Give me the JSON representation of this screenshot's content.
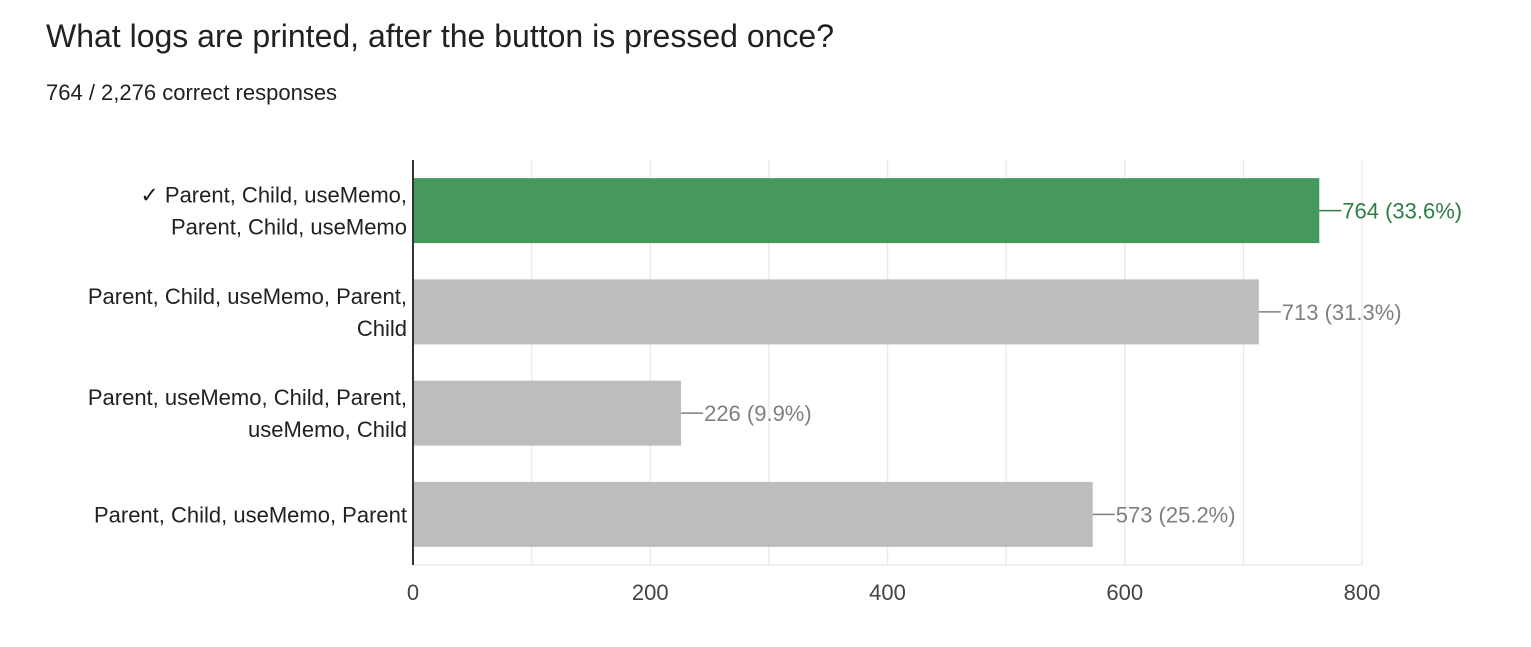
{
  "header": {
    "title": "What logs are printed, after the button is pressed once?",
    "subtitle": "764 / 2,276 correct responses"
  },
  "colors": {
    "correct": "#46995D",
    "other": "#BDBDBD",
    "correct_label": "#2E7D46",
    "other_label": "#7F7F7F",
    "grid": "#EBEBEB",
    "axis": "#333333"
  },
  "chart_data": {
    "type": "bar",
    "orientation": "horizontal",
    "categories": [
      [
        "✓ Parent, Child, useMemo,",
        "Parent, Child, useMemo"
      ],
      [
        "Parent, Child, useMemo, Parent,",
        "Child"
      ],
      [
        "Parent, useMemo, Child, Parent,",
        "useMemo, Child"
      ],
      [
        "Parent, Child, useMemo, Parent"
      ]
    ],
    "values": [
      764,
      713,
      226,
      573
    ],
    "labels": [
      "764 (33.6%)",
      "713 (31.3%)",
      "226 (9.9%)",
      "573 (25.2%)"
    ],
    "correct": [
      true,
      false,
      false,
      false
    ],
    "xlim": [
      0,
      800
    ],
    "xticks": [
      0,
      200,
      400,
      600,
      800
    ],
    "grid": true
  }
}
